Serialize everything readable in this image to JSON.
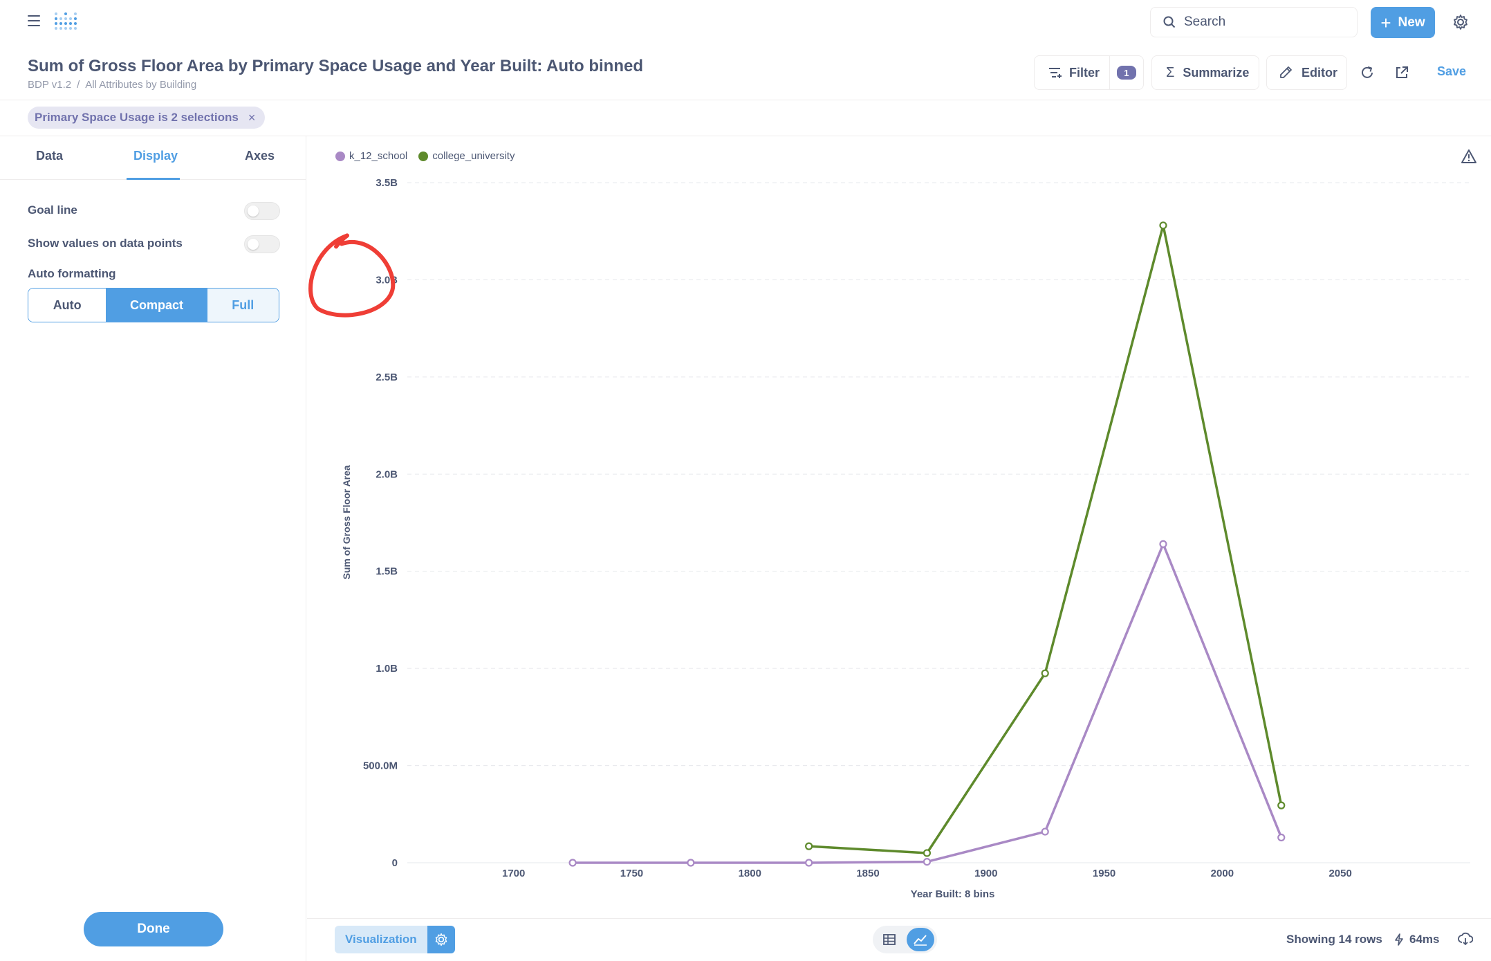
{
  "header": {
    "search_label": "Search",
    "new_label": "New",
    "title": "Sum of Gross Floor Area by Primary Space Usage and Year Built: Auto binned",
    "breadcrumb": [
      "BDP v1.2",
      "All Attributes by Building"
    ],
    "filter_label": "Filter",
    "filter_count": "1",
    "summarize_label": "Summarize",
    "editor_label": "Editor",
    "save_label": "Save"
  },
  "filter_pill": {
    "label": "Primary Space Usage is 2 selections",
    "remove": "×"
  },
  "sidebar": {
    "tabs": [
      "Data",
      "Display",
      "Axes"
    ],
    "active_tab": "Display",
    "goal_line_label": "Goal line",
    "goal_line_on": false,
    "show_values_label": "Show values on data points",
    "show_values_on": false,
    "auto_formatting_label": "Auto formatting",
    "formatting_options": [
      "Auto",
      "Compact",
      "Full"
    ],
    "formatting_selected": "Compact",
    "done_label": "Done"
  },
  "chart_data": {
    "type": "line",
    "xlabel": "Year Built: 8 bins",
    "ylabel": "Sum of Gross Floor Area",
    "x_ticks": [
      "1700",
      "1750",
      "1800",
      "1850",
      "1900",
      "1950",
      "2000",
      "2050"
    ],
    "y_ticks": [
      "0",
      "500.0M",
      "1.0B",
      "1.5B",
      "2.0B",
      "2.5B",
      "3.0B",
      "3.5B"
    ],
    "xlim": [
      1655,
      2105
    ],
    "ylim": [
      0,
      3500000000
    ],
    "grid": "horizontal dashed",
    "legend_position": "top-left",
    "series": [
      {
        "name": "k_12_school",
        "color": "#a989c5",
        "x": [
          1725,
          1775,
          1825,
          1875,
          1925,
          1975,
          2025
        ],
        "values": [
          0,
          0,
          0,
          5000000,
          160000000,
          1640000000,
          130000000
        ]
      },
      {
        "name": "college_university",
        "color": "#5e8a2c",
        "x": [
          1825,
          1875,
          1925,
          1975,
          2025
        ],
        "values": [
          85000000,
          50000000,
          975000000,
          3280000000,
          295000000
        ]
      }
    ],
    "annotation": "red hand-drawn circle around 3.0B tick label"
  },
  "footer": {
    "visualization_label": "Visualization",
    "rows_text": "Showing 14 rows",
    "time_text": "64ms"
  }
}
